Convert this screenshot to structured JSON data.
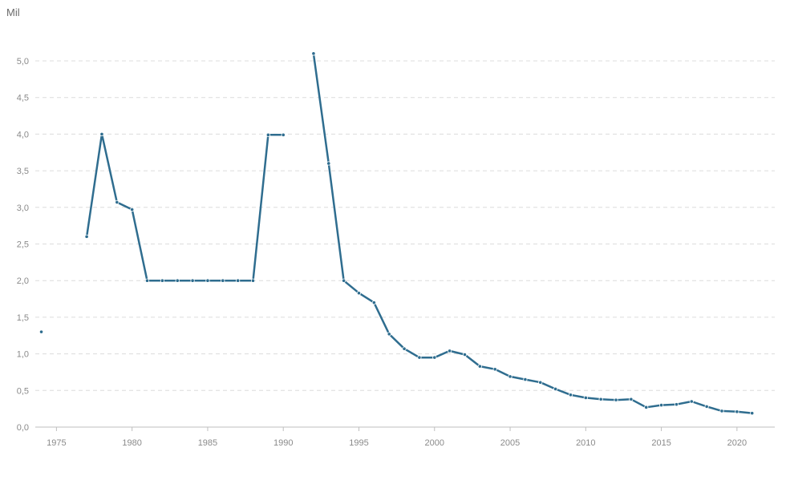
{
  "unit_label": "Mil",
  "colors": {
    "series": "#2f6d8f",
    "grid": "#dcdcdc",
    "axis": "#bfbfbf",
    "text": "#8a8a8a"
  },
  "chart_data": {
    "type": "line",
    "ylabel": "Mil",
    "xlabel": "",
    "xlim": [
      1973.6,
      2022.5
    ],
    "ylim": [
      0,
      5.0
    ],
    "x_ticks": [
      1975,
      1980,
      1985,
      1990,
      1995,
      2000,
      2005,
      2010,
      2015,
      2020
    ],
    "y_ticks": [
      "0,0",
      "0,5",
      "1,0",
      "1,5",
      "2,0",
      "2,5",
      "3,0",
      "3,5",
      "4,0",
      "4,5",
      "5,0"
    ],
    "grid": true,
    "series": [
      {
        "x": [
          1974,
          1975,
          1976,
          1977,
          1978,
          1979,
          1980,
          1981,
          1982,
          1983,
          1984,
          1985,
          1986,
          1987,
          1988,
          1989,
          1990,
          1991,
          1992,
          1993,
          1994,
          1995,
          1996,
          1997,
          1998,
          1999,
          2000,
          2001,
          2002,
          2003,
          2004,
          2005,
          2006,
          2007,
          2008,
          2009,
          2010,
          2011,
          2012,
          2013,
          2014,
          2015,
          2016,
          2017,
          2018,
          2019,
          2020,
          2021
        ],
        "values": [
          1.3,
          null,
          null,
          2.6,
          4.0,
          3.07,
          2.97,
          2.0,
          2.0,
          2.0,
          2.0,
          2.0,
          2.0,
          2.0,
          2.0,
          3.99,
          3.99,
          null,
          5.1,
          3.6,
          2.0,
          1.83,
          1.7,
          1.27,
          1.07,
          0.95,
          0.95,
          1.04,
          0.99,
          0.83,
          0.79,
          0.69,
          0.65,
          0.61,
          0.52,
          0.44,
          0.4,
          0.38,
          0.37,
          0.38,
          0.27,
          0.3,
          0.31,
          0.35,
          0.28,
          0.22,
          0.21,
          0.19
        ]
      }
    ]
  }
}
